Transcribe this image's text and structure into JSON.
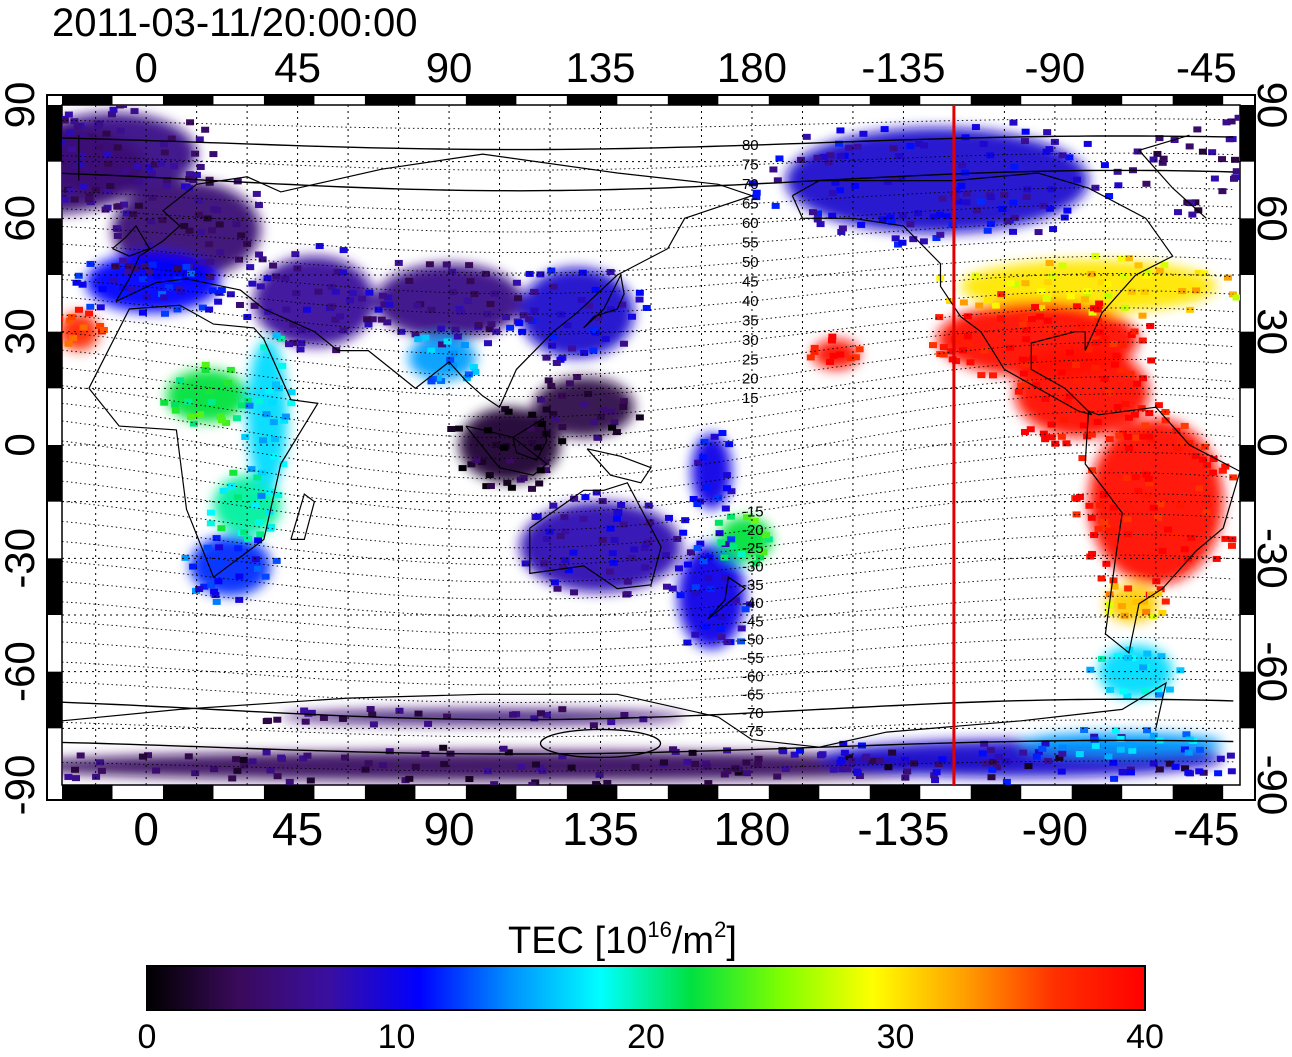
{
  "map": {
    "title": "2011-03-11/20:00:00",
    "projection": "equirectangular",
    "lon_center": 150,
    "lon_range": [
      -25,
      325
    ],
    "lat_range": [
      -90,
      90
    ],
    "top_x_ticks": [
      "0",
      "45",
      "90",
      "135",
      "180",
      "-135",
      "-90",
      "-45"
    ],
    "bottom_x_ticks": [
      "0",
      "45",
      "90",
      "135",
      "180",
      "-135",
      "-90",
      "-45"
    ],
    "tick_lons": [
      0,
      45,
      90,
      135,
      180,
      225,
      270,
      315
    ],
    "left_y_ticks": [
      "90",
      "60",
      "30",
      "0",
      "-30",
      "-60",
      "-90"
    ],
    "right_y_ticks": [
      "90",
      "60",
      "30",
      "0",
      "-30",
      "-60",
      "-90"
    ],
    "tick_lats": [
      90,
      60,
      30,
      0,
      -30,
      -60,
      -90
    ],
    "grid": "dotted 15 degrees",
    "terminator_line": {
      "longitude": -120,
      "color": "#e00000"
    },
    "magnetic_latitude_labels": [
      "80",
      "75",
      "70",
      "65",
      "60",
      "55",
      "50",
      "45",
      "40",
      "35",
      "30",
      "25",
      "20",
      "15",
      "15",
      "20",
      "25",
      "30",
      "35",
      "40",
      "45",
      "50",
      "55",
      "60",
      "65",
      "70",
      "75"
    ],
    "magnetic_label_lats": [
      80,
      75,
      70,
      65,
      60,
      55,
      50,
      45,
      40,
      35,
      30,
      25,
      20,
      15,
      -15,
      -20,
      -25,
      -30,
      -35,
      -40,
      -45,
      -50,
      -55,
      -60,
      -65,
      -70,
      -75
    ],
    "tec_regions": [
      {
        "lon": -10,
        "lat": 77,
        "rx": 25,
        "ry": 11,
        "tec": 6
      },
      {
        "lon": 12,
        "lat": 57,
        "rx": 22,
        "ry": 13,
        "tec": 5
      },
      {
        "lon": 2,
        "lat": 43,
        "rx": 20,
        "ry": 8,
        "tec": 11
      },
      {
        "lon": -20,
        "lat": 30,
        "rx": 6,
        "ry": 5,
        "tec": 37
      },
      {
        "lon": 18,
        "lat": 13,
        "rx": 12,
        "ry": 7,
        "tec": 22
      },
      {
        "lon": 30,
        "lat": -16,
        "rx": 10,
        "ry": 8,
        "tec": 20
      },
      {
        "lon": 25,
        "lat": -32,
        "rx": 12,
        "ry": 8,
        "tec": 12
      },
      {
        "lon": 36,
        "lat": 8,
        "rx": 6,
        "ry": 20,
        "tec": 17
      },
      {
        "lon": 50,
        "lat": 38,
        "rx": 18,
        "ry": 12,
        "tec": 7
      },
      {
        "lon": 90,
        "lat": 38,
        "rx": 22,
        "ry": 10,
        "tec": 6
      },
      {
        "lon": 88,
        "lat": 23,
        "rx": 10,
        "ry": 6,
        "tec": 15
      },
      {
        "lon": 128,
        "lat": 35,
        "rx": 17,
        "ry": 12,
        "tec": 9
      },
      {
        "lon": 108,
        "lat": 0,
        "rx": 15,
        "ry": 10,
        "tec": 2
      },
      {
        "lon": 130,
        "lat": 10,
        "rx": 15,
        "ry": 8,
        "tec": 3
      },
      {
        "lon": 135,
        "lat": -27,
        "rx": 24,
        "ry": 12,
        "tec": 8
      },
      {
        "lon": 168,
        "lat": -40,
        "rx": 10,
        "ry": 14,
        "tec": 10
      },
      {
        "lon": 178,
        "lat": -25,
        "rx": 8,
        "ry": 6,
        "tec": 22
      },
      {
        "lon": 168,
        "lat": -7,
        "rx": 6,
        "ry": 10,
        "tec": 10
      },
      {
        "lon": 235,
        "lat": 70,
        "rx": 45,
        "ry": 14,
        "tec": 9
      },
      {
        "lon": 280,
        "lat": 42,
        "rx": 38,
        "ry": 7,
        "tec": 30
      },
      {
        "lon": 265,
        "lat": 28,
        "rx": 30,
        "ry": 10,
        "tec": 39
      },
      {
        "lon": 278,
        "lat": 14,
        "rx": 20,
        "ry": 12,
        "tec": 39
      },
      {
        "lon": 300,
        "lat": -15,
        "rx": 20,
        "ry": 22,
        "tec": 39
      },
      {
        "lon": 293,
        "lat": -42,
        "rx": 8,
        "ry": 5,
        "tec": 31
      },
      {
        "lon": 294,
        "lat": -60,
        "rx": 11,
        "ry": 7,
        "tec": 17
      },
      {
        "lon": 205,
        "lat": 24,
        "rx": 7,
        "ry": 4,
        "tec": 39
      },
      {
        "lon": 330,
        "lat": 73,
        "rx": 30,
        "ry": 12,
        "tec": 5
      },
      {
        "lon": 110,
        "lat": -85,
        "rx": 150,
        "ry": 4,
        "tec": 4
      },
      {
        "lon": 260,
        "lat": -83,
        "rx": 60,
        "ry": 5,
        "tec": 9
      },
      {
        "lon": 290,
        "lat": -79,
        "rx": 30,
        "ry": 3,
        "tec": 15
      },
      {
        "lon": 100,
        "lat": -72,
        "rx": 60,
        "ry": 2,
        "tec": 5
      }
    ]
  },
  "colorbar": {
    "title_main": "TEC  [10",
    "title_exp1": "16",
    "title_mid": "/m",
    "title_exp2": "2",
    "title_end": "]",
    "min": 0,
    "max": 40,
    "ticks": [
      0,
      10,
      20,
      30,
      40
    ],
    "tick_labels": [
      "0",
      "10",
      "20",
      "30",
      "40"
    ],
    "colors": [
      "#000000",
      "#3a0a5a",
      "#3a0fa0",
      "#0000ff",
      "#0090ff",
      "#00ffff",
      "#00e040",
      "#80ff00",
      "#ffff00",
      "#ffa000",
      "#ff3000",
      "#ff0000"
    ]
  }
}
